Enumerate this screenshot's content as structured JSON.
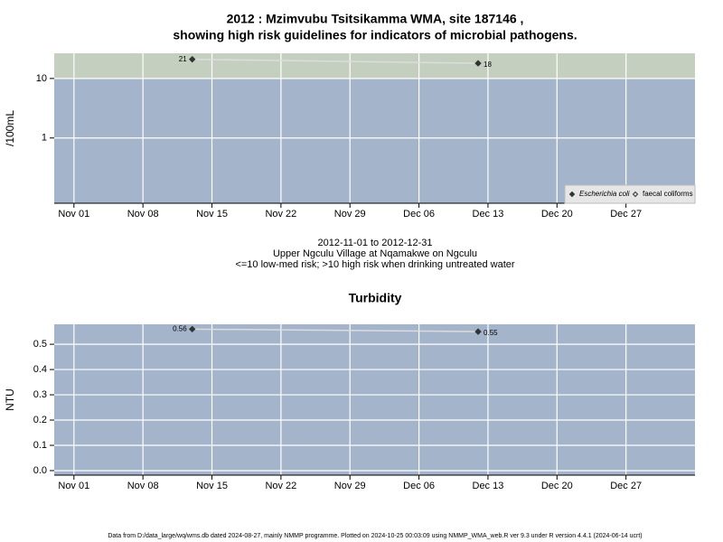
{
  "chart_data": [
    {
      "type": "line",
      "title": [
        "2012 : Mzimvubu Tsitsikamma WMA, site 187146 ,",
        "showing high risk guidelines for indicators of microbial pathogens."
      ],
      "y_label": "/100mL",
      "log_y": true,
      "ylim": [
        0.08,
        26.5
      ],
      "yticks": [
        1,
        10
      ],
      "threshold": 10,
      "threshold_color": "#c5cfc0",
      "background": "#a3b4cb",
      "grid": true,
      "xlim": [
        "2012-10-30",
        "2013-01-03"
      ],
      "xticks": [
        {
          "value": "2012-11-01",
          "label": "Nov 01"
        },
        {
          "value": "2012-11-08",
          "label": "Nov 08"
        },
        {
          "value": "2012-11-15",
          "label": "Nov 15"
        },
        {
          "value": "2012-11-22",
          "label": "Nov 22"
        },
        {
          "value": "2012-11-29",
          "label": "Nov 29"
        },
        {
          "value": "2012-12-06",
          "label": "Dec 06"
        },
        {
          "value": "2012-12-13",
          "label": "Dec 13"
        },
        {
          "value": "2012-12-20",
          "label": "Dec 20"
        },
        {
          "value": "2012-12-27",
          "label": "Dec 27"
        }
      ],
      "x": [
        "2012-11-13",
        "2012-12-12"
      ],
      "legend": "lower right",
      "series": [
        {
          "name": "Escherichia coli",
          "color": "#333333",
          "line_color": "#dcdcdc",
          "marker": "filled",
          "values": [
            21,
            18
          ]
        },
        {
          "name": "faecal coliforms",
          "color": "#333333",
          "line_color": "#dcdcdc",
          "marker": "open",
          "values": [
            null,
            null
          ]
        }
      ]
    },
    {
      "type": "line",
      "title": [
        "Turbidity"
      ],
      "y_label": "NTU",
      "log_y": false,
      "ylim": [
        -0.018,
        0.579
      ],
      "yticks": [
        {
          "value": 0,
          "label": "0.0"
        },
        0.1,
        0.2,
        0.3,
        0.4,
        0.5
      ],
      "background": "#a3b4cb",
      "grid": true,
      "xlim": [
        "2012-10-30",
        "2013-01-03"
      ],
      "xticks": [
        {
          "value": "2012-11-01",
          "label": "Nov 01"
        },
        {
          "value": "2012-11-08",
          "label": "Nov 08"
        },
        {
          "value": "2012-11-15",
          "label": "Nov 15"
        },
        {
          "value": "2012-11-22",
          "label": "Nov 22"
        },
        {
          "value": "2012-11-29",
          "label": "Nov 29"
        },
        {
          "value": "2012-12-06",
          "label": "Dec 06"
        },
        {
          "value": "2012-12-13",
          "label": "Dec 13"
        },
        {
          "value": "2012-12-20",
          "label": "Dec 20"
        },
        {
          "value": "2012-12-27",
          "label": "Dec 27"
        }
      ],
      "x": [
        "2012-11-13",
        "2012-12-12"
      ],
      "series": [
        {
          "color": "#333333",
          "line_color": "#dcdcdc",
          "marker": "filled",
          "values": [
            0.56,
            0.55
          ]
        }
      ]
    }
  ],
  "notes": [
    "2012-11-01 to 2012-12-31",
    "Upper Ngculu Village at Nqamakwe on Ngculu",
    "<=10 low-med risk; >10 high risk when drinking untreated water"
  ],
  "footer": "Data from D:/data_large/wq/wms.db dated 2024-08-27, mainly NMMP programme. Plotted on 2024-10-25 00:03:09 using NMMP_WMA_web.R ver 9.3 under R version 4.4.1 (2024-06-14 ucrt)"
}
